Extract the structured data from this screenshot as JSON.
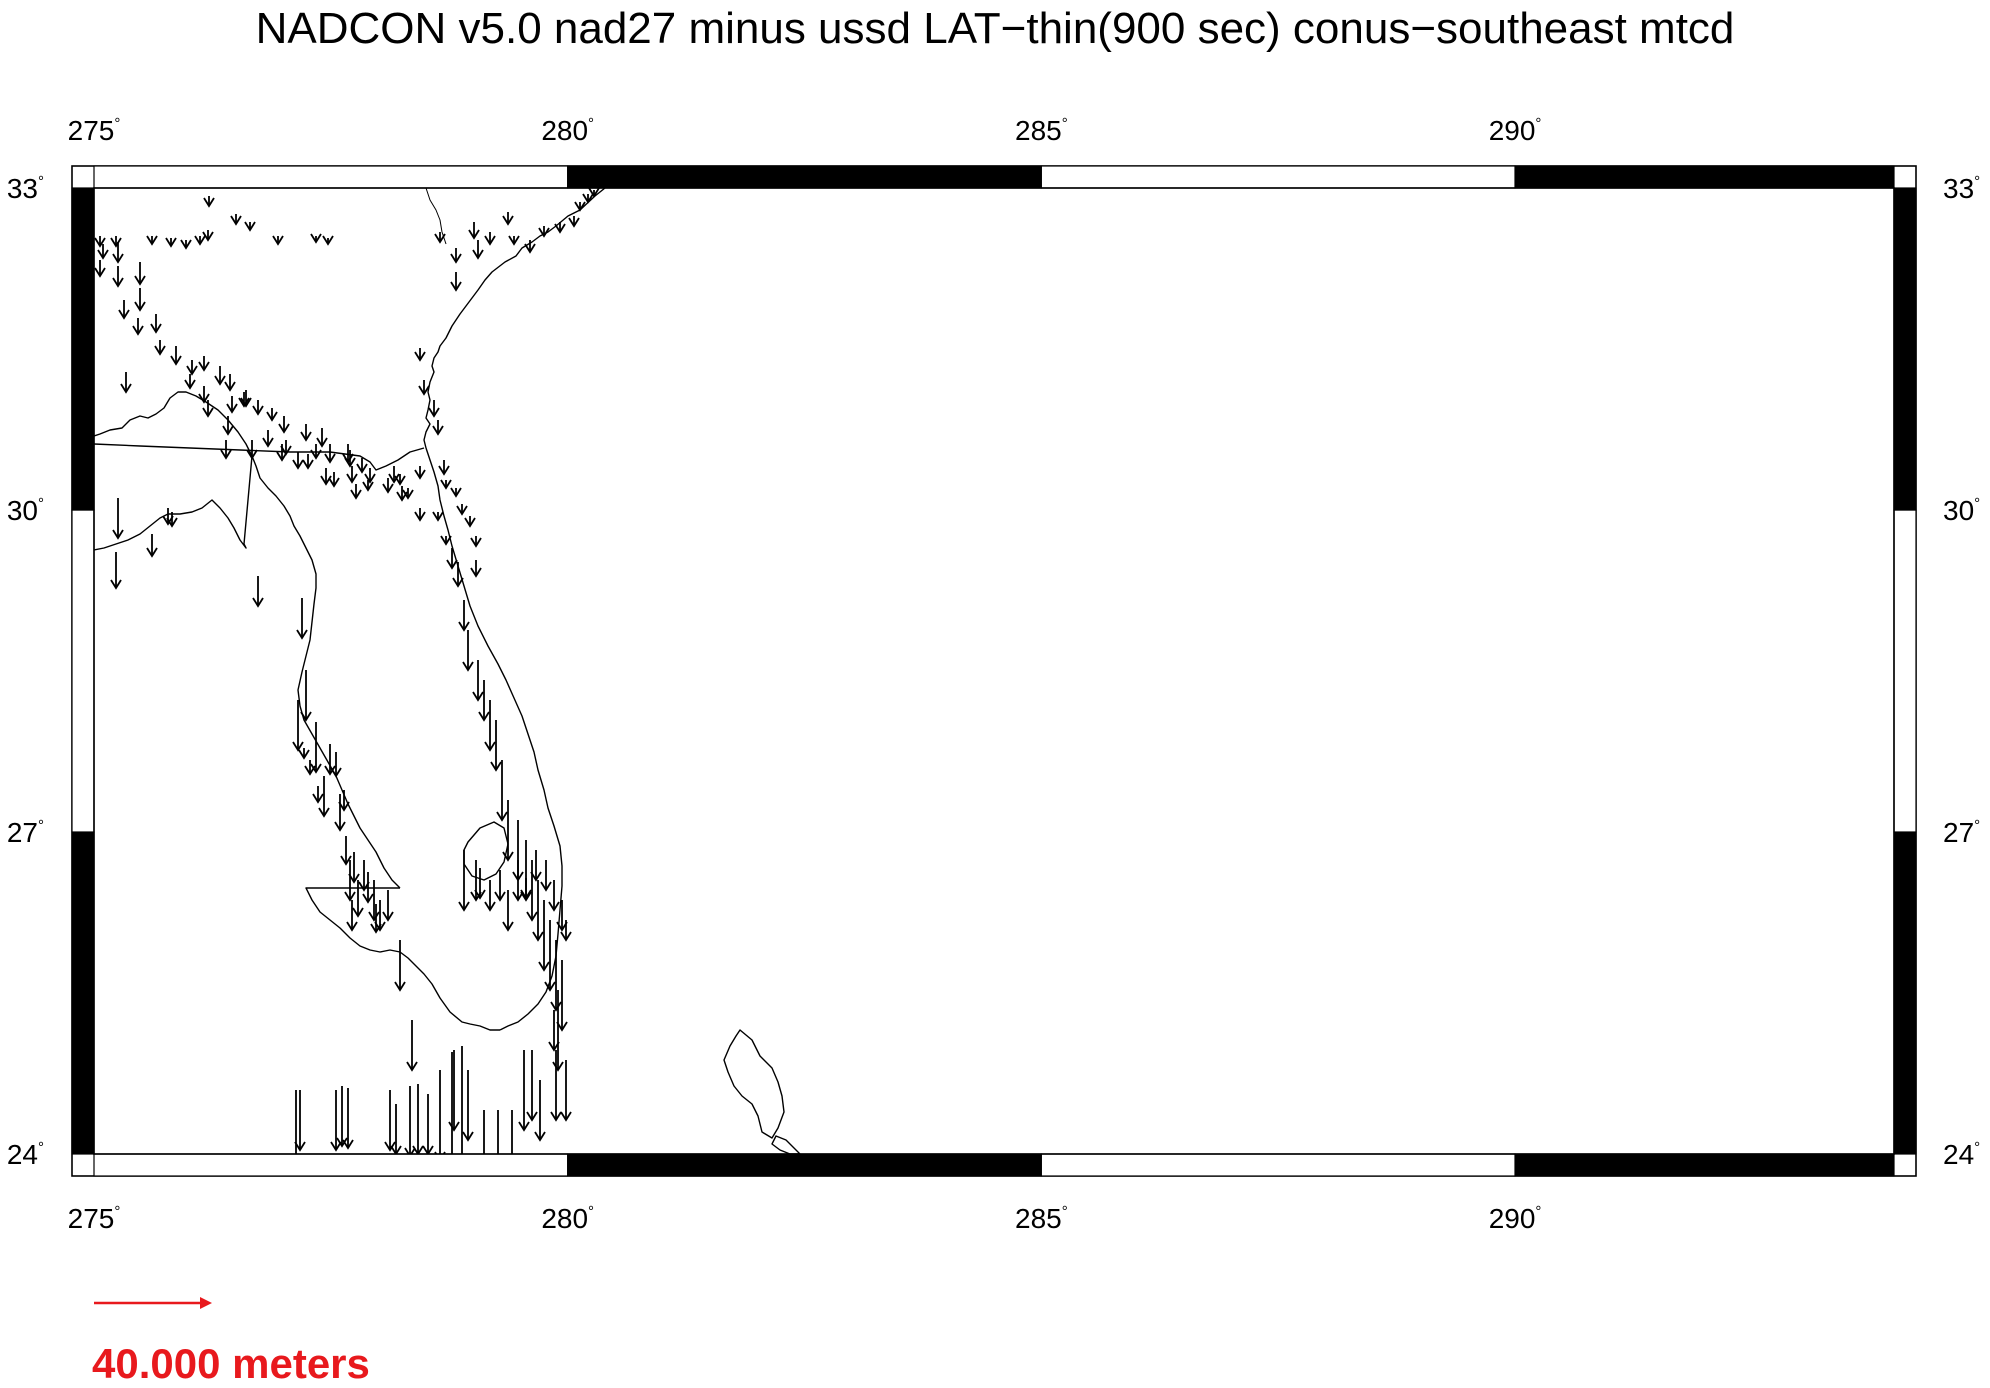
{
  "title": "NADCON v5.0 nad27 minus ussd LAT−thin(900 sec) conus−southeast mtcd",
  "map": {
    "lon_range": [
      275,
      294
    ],
    "lat_range": [
      24,
      33
    ],
    "lon_ticks": [
      {
        "value": 275,
        "label": "275"
      },
      {
        "value": 280,
        "label": "280"
      },
      {
        "value": 285,
        "label": "285"
      },
      {
        "value": 290,
        "label": "290"
      }
    ],
    "lat_ticks": [
      {
        "value": 33,
        "label": "33"
      },
      {
        "value": 30,
        "label": "30"
      },
      {
        "value": 27,
        "label": "27"
      },
      {
        "value": 24,
        "label": "24"
      }
    ],
    "degree_symbol": "°",
    "frame_style": "alternating black/white graduated border",
    "coastline_color": "#000000",
    "vector_color": "#000000",
    "vector_direction": "south"
  },
  "scale": {
    "label": "40.000 meters",
    "color": "#e8191d"
  }
}
